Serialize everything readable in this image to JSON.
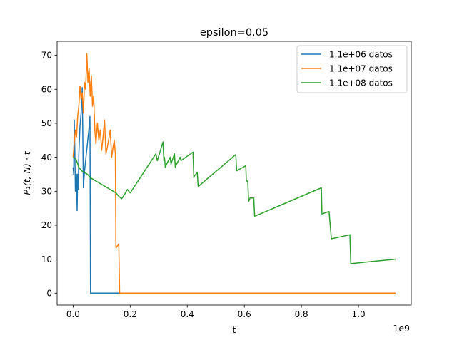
{
  "chart_data": {
    "type": "line",
    "title": "epsilon=0.05",
    "xlabel": "t",
    "ylabel": "P₁(t, N) · t",
    "x_offset_label": "1e9",
    "xlim": [
      -0.056,
      1.185
    ],
    "ylim": [
      -3.5,
      74.1
    ],
    "xticks": [
      0.0,
      0.2,
      0.4,
      0.6,
      0.8,
      1.0
    ],
    "xtick_labels": [
      "0.0",
      "0.2",
      "0.4",
      "0.6",
      "0.8",
      "1.0"
    ],
    "yticks": [
      0,
      10,
      20,
      30,
      40,
      50,
      60,
      70
    ],
    "ytick_labels": [
      "0",
      "10",
      "20",
      "30",
      "40",
      "50",
      "60",
      "70"
    ],
    "legend_position": "top-right",
    "grid": false,
    "series": [
      {
        "name": "1.1e+06 datos",
        "color": "#1f77b4",
        "x": [
          0.0,
          0.002,
          0.004,
          0.006,
          0.008,
          0.01,
          0.012,
          0.014,
          0.016,
          0.018,
          0.02,
          0.024,
          0.028,
          0.032,
          0.036,
          0.04,
          0.045,
          0.05,
          0.055,
          0.059,
          0.061,
          0.064,
          1.13
        ],
        "y": [
          37.0,
          35.0,
          51.0,
          42.0,
          30.0,
          33.0,
          35.0,
          24.3,
          35.0,
          30.5,
          41.0,
          49.0,
          53.0,
          60.5,
          31.0,
          36.0,
          40.0,
          44.0,
          48.0,
          52.0,
          0.0,
          0.0,
          0.0
        ]
      },
      {
        "name": "1.1e+07 datos",
        "color": "#ff7f0e",
        "x": [
          0.0,
          0.004,
          0.008,
          0.012,
          0.016,
          0.02,
          0.024,
          0.028,
          0.032,
          0.036,
          0.04,
          0.044,
          0.048,
          0.052,
          0.056,
          0.06,
          0.064,
          0.068,
          0.072,
          0.076,
          0.08,
          0.085,
          0.09,
          0.095,
          0.1,
          0.105,
          0.11,
          0.115,
          0.12,
          0.126,
          0.13,
          0.135,
          0.14,
          0.144,
          0.148,
          0.15,
          0.16,
          0.163,
          0.166,
          1.13
        ],
        "y": [
          40.0,
          44.0,
          48.0,
          46.0,
          52.0,
          55.0,
          61.0,
          57.0,
          59.0,
          53.0,
          62.0,
          60.0,
          70.5,
          62.0,
          66.0,
          58.0,
          64.0,
          55.0,
          58.0,
          48.0,
          44.0,
          50.0,
          45.0,
          48.0,
          42.0,
          46.0,
          51.0,
          41.0,
          43.0,
          46.0,
          48.0,
          40.0,
          43.0,
          45.0,
          41.0,
          13.3,
          14.5,
          0.0,
          0.0,
          0.0
        ]
      },
      {
        "name": "1.1e+08 datos",
        "color": "#2ca02c",
        "x": [
          0.0,
          0.01,
          0.02,
          0.03,
          0.04,
          0.05,
          0.06,
          0.07,
          0.08,
          0.09,
          0.1,
          0.11,
          0.12,
          0.13,
          0.14,
          0.15,
          0.16,
          0.17,
          0.18,
          0.19,
          0.2,
          0.29,
          0.295,
          0.315,
          0.318,
          0.32,
          0.323,
          0.325,
          0.34,
          0.343,
          0.355,
          0.358,
          0.36,
          0.375,
          0.378,
          0.42,
          0.423,
          0.425,
          0.435,
          0.438,
          0.44,
          0.57,
          0.573,
          0.605,
          0.607,
          0.612,
          0.615,
          0.62,
          0.633,
          0.636,
          0.638,
          0.87,
          0.872,
          0.895,
          0.897,
          0.905,
          0.97,
          0.973,
          1.13
        ],
        "y": [
          40.0,
          39.5,
          37.0,
          36.0,
          35.5,
          35.0,
          34.0,
          33.5,
          33.0,
          32.5,
          32.0,
          31.5,
          31.0,
          30.5,
          30.0,
          29.5,
          28.5,
          27.8,
          29.0,
          30.5,
          29.5,
          41.0,
          39.0,
          44.5,
          39.0,
          40.0,
          37.0,
          37.5,
          40.0,
          38.0,
          41.0,
          37.0,
          37.5,
          40.0,
          39.0,
          41.5,
          34.0,
          34.5,
          35.5,
          31.5,
          31.5,
          40.8,
          36.0,
          37.5,
          33.0,
          33.0,
          27.0,
          28.0,
          28.0,
          22.7,
          22.7,
          31.0,
          23.3,
          24.0,
          24.0,
          16.0,
          17.2,
          8.7,
          10.0
        ]
      }
    ]
  }
}
